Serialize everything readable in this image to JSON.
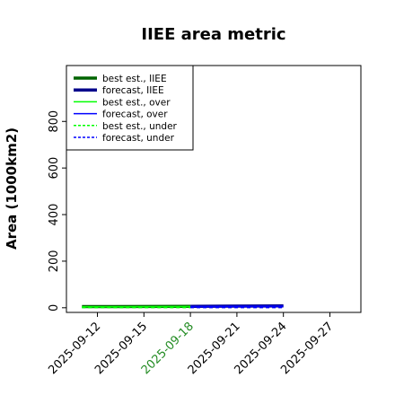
{
  "chart_data": {
    "type": "line",
    "title": "IIEE area metric",
    "xlabel": "",
    "ylabel": "Area (1000km2)",
    "xlim": [
      "2025-09-10",
      "2025-09-29"
    ],
    "ylim": [
      -20,
      1040
    ],
    "y_ticks": [
      0,
      200,
      400,
      600,
      800
    ],
    "x_ticks": [
      "2025-09-12",
      "2025-09-15",
      "2025-09-18",
      "2025-09-21",
      "2025-09-24",
      "2025-09-27"
    ],
    "x_tick_colors": [
      "#000000",
      "#000000",
      "#228B22",
      "#000000",
      "#000000",
      "#000000"
    ],
    "grid": false,
    "legend_position": "top-left",
    "series": [
      {
        "name": "best est., IIEE",
        "color": "#006400",
        "style": "solid",
        "width": "thick",
        "x": [
          "2025-09-11",
          "2025-09-18"
        ],
        "y": [
          5,
          6
        ]
      },
      {
        "name": "forecast, IIEE",
        "color": "#00008B",
        "style": "solid",
        "width": "thick",
        "x": [
          "2025-09-18",
          "2025-09-24"
        ],
        "y": [
          6,
          8
        ]
      },
      {
        "name": "best est., over",
        "color": "#00FF00",
        "style": "solid",
        "width": "thin",
        "x": [
          "2025-09-11",
          "2025-09-18"
        ],
        "y": [
          4,
          5
        ]
      },
      {
        "name": "forecast, over",
        "color": "#0000FF",
        "style": "solid",
        "width": "thin",
        "x": [
          "2025-09-18",
          "2025-09-24"
        ],
        "y": [
          5,
          7
        ]
      },
      {
        "name": "best est., under",
        "color": "#00FF00",
        "style": "dashed",
        "width": "thin",
        "x": [
          "2025-09-11",
          "2025-09-18"
        ],
        "y": [
          1,
          1
        ]
      },
      {
        "name": "forecast, under",
        "color": "#0000FF",
        "style": "dashed",
        "width": "thin",
        "x": [
          "2025-09-18",
          "2025-09-24"
        ],
        "y": [
          1,
          1
        ]
      }
    ]
  }
}
